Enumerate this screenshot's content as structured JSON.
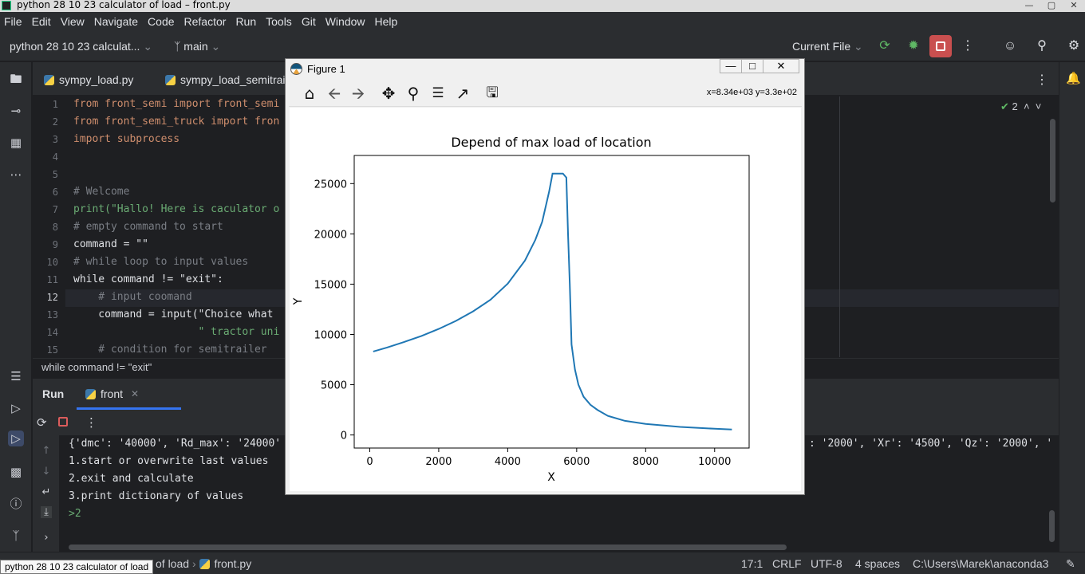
{
  "window": {
    "title": "python 28 10 23 calculator of load – front.py",
    "tooltip": "python 28 10 23 calculator of load"
  },
  "menu": [
    "File",
    "Edit",
    "View",
    "Navigate",
    "Code",
    "Refactor",
    "Run",
    "Tools",
    "Git",
    "Window",
    "Help"
  ],
  "toolbar": {
    "project": "python 28 10 23 calculat...",
    "branch": "main",
    "run_config": "Current File"
  },
  "editor": {
    "tabs": [
      "sympy_load.py",
      "sympy_load_semitrail"
    ],
    "inspections": "2",
    "lines": [
      {
        "n": "1",
        "text": "from front_semi import front_semi"
      },
      {
        "n": "2",
        "text": "from front_semi_truck import fron"
      },
      {
        "n": "3",
        "text": "import subprocess"
      },
      {
        "n": "4",
        "text": ""
      },
      {
        "n": "5",
        "text": ""
      },
      {
        "n": "6",
        "text": "# Welcome"
      },
      {
        "n": "7",
        "text": "print(\"Hallo! Here is caculator o"
      },
      {
        "n": "8",
        "text": "# empty command to start"
      },
      {
        "n": "9",
        "text": "command = \"\""
      },
      {
        "n": "10",
        "text": "# while loop to input values"
      },
      {
        "n": "11",
        "text": "while command != \"exit\":"
      },
      {
        "n": "12",
        "text": "    # input coomand"
      },
      {
        "n": "13",
        "text": "    command = input(\"Choice what "
      },
      {
        "n": "14",
        "text": "                    \" tractor uni"
      },
      {
        "n": "15",
        "text": "    # condition for semitrailer"
      }
    ],
    "breadcrumb": "while command != \"exit\""
  },
  "run": {
    "title": "Run",
    "tab": "front",
    "console": [
      "{'dmc': '40000', 'Rd_max': '24000'",
      "1.start or overwrite last values",
      "2.exit and calculate",
      "3.print dictionary of values",
      ">2"
    ],
    "console_right": ": '2000', 'Xr': '4500', 'Qz': '2000', '"
  },
  "status": {
    "crumb_project": "of load",
    "crumb_file": "front.py",
    "position": "17:1",
    "line_sep": "CRLF",
    "encoding": "UTF-8",
    "indent": "4 spaces",
    "interpreter": "C:\\Users\\Marek\\anaconda3"
  },
  "figure": {
    "window_title": "Figure 1",
    "coords": "x=8.34e+03 y=3.3e+02",
    "tools": [
      "home-icon",
      "back-icon",
      "forward-icon",
      "pan-icon",
      "zoom-icon",
      "subplots-icon",
      "axes-edit-icon",
      "save-icon"
    ]
  },
  "chart_data": {
    "type": "line",
    "title": "Depend of max load of location",
    "xlabel": "X",
    "ylabel": "Y",
    "xlim": [
      -450,
      11000
    ],
    "ylim": [
      -1300,
      27800
    ],
    "xticks": [
      0,
      2000,
      4000,
      6000,
      8000,
      10000
    ],
    "yticks": [
      0,
      5000,
      10000,
      15000,
      20000,
      25000
    ],
    "grid": false,
    "color": "#1f77b4",
    "series": [
      {
        "values_xy": [
          [
            100,
            8300
          ],
          [
            500,
            8700
          ],
          [
            1000,
            9250
          ],
          [
            1500,
            9850
          ],
          [
            2000,
            10550
          ],
          [
            2500,
            11350
          ],
          [
            3000,
            12300
          ],
          [
            3500,
            13450
          ],
          [
            4000,
            15050
          ],
          [
            4500,
            17350
          ],
          [
            4800,
            19400
          ],
          [
            5000,
            21200
          ],
          [
            5200,
            24200
          ],
          [
            5300,
            26000
          ],
          [
            5400,
            26000
          ],
          [
            5600,
            26000
          ],
          [
            5700,
            25600
          ],
          [
            5750,
            20000
          ],
          [
            5800,
            15000
          ],
          [
            5850,
            9000
          ],
          [
            5950,
            6500
          ],
          [
            6050,
            5000
          ],
          [
            6200,
            3800
          ],
          [
            6400,
            3000
          ],
          [
            6600,
            2500
          ],
          [
            6900,
            1900
          ],
          [
            7400,
            1400
          ],
          [
            8000,
            1100
          ],
          [
            9000,
            800
          ],
          [
            10000,
            620
          ],
          [
            10500,
            550
          ]
        ]
      }
    ]
  }
}
